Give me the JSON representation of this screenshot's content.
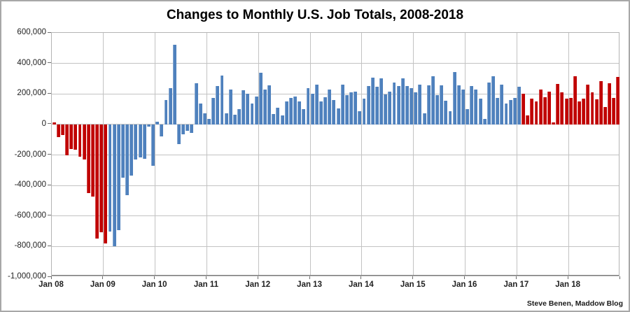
{
  "title": "Changes to Monthly U.S. Job Totals, 2008-2018",
  "attribution": "Steve Benen, Maddow Blog",
  "chart_data": {
    "type": "bar",
    "title": "Changes to Monthly U.S. Job Totals, 2008-2018",
    "x_frequency": "monthly",
    "x_start": "Jan 2008",
    "x_end": "Dec 2018",
    "x_tick_labels": [
      "Jan 08",
      "Jan 09",
      "Jan 10",
      "Jan 11",
      "Jan 12",
      "Jan 13",
      "Jan 14",
      "Jan 15",
      "Jan 16",
      "Jan 17",
      "Jan 18"
    ],
    "y_tick_labels": [
      "600,000",
      "400,000",
      "200,000",
      "0",
      "-200,000",
      "-400,000",
      "-600,000",
      "-800,000",
      "-1,000,000"
    ],
    "ylim": [
      -1000000,
      600000
    ],
    "y_gridline_step": 200000,
    "grid": true,
    "legend": "none",
    "colors": {
      "gop_red": "#C00000",
      "dem_blue": "#4F81BD",
      "gridline": "#C3C3C3",
      "axis": "#6E6E6E",
      "text": "#1F1F1F"
    },
    "red_index_ranges": [
      [
        0,
        12
      ],
      [
        109,
        131
      ]
    ],
    "values": [
      15000,
      -85000,
      -70000,
      -200000,
      -160000,
      -165000,
      -210000,
      -230000,
      -450000,
      -475000,
      -750000,
      -705000,
      -780000,
      -700000,
      -800000,
      -695000,
      -350000,
      -465000,
      -335000,
      -230000,
      -215000,
      -225000,
      -15000,
      -270000,
      20000,
      -80000,
      160000,
      240000,
      520000,
      -130000,
      -65000,
      -40000,
      -55000,
      270000,
      135000,
      75000,
      35000,
      175000,
      250000,
      320000,
      75000,
      230000,
      65000,
      100000,
      225000,
      200000,
      135000,
      185000,
      340000,
      230000,
      255000,
      70000,
      110000,
      60000,
      150000,
      175000,
      185000,
      150000,
      100000,
      240000,
      200000,
      260000,
      150000,
      180000,
      230000,
      160000,
      105000,
      260000,
      190000,
      210000,
      215000,
      85000,
      170000,
      250000,
      305000,
      245000,
      300000,
      195000,
      215000,
      275000,
      250000,
      300000,
      250000,
      240000,
      210000,
      260000,
      75000,
      255000,
      315000,
      190000,
      255000,
      155000,
      85000,
      345000,
      255000,
      230000,
      100000,
      250000,
      230000,
      170000,
      35000,
      275000,
      315000,
      175000,
      260000,
      135000,
      160000,
      175000,
      245000,
      200000,
      60000,
      170000,
      150000,
      230000,
      180000,
      215000,
      15000,
      265000,
      210000,
      170000,
      175000,
      315000,
      150000,
      170000,
      260000,
      210000,
      165000,
      285000,
      115000,
      270000,
      175000,
      310000
    ]
  }
}
